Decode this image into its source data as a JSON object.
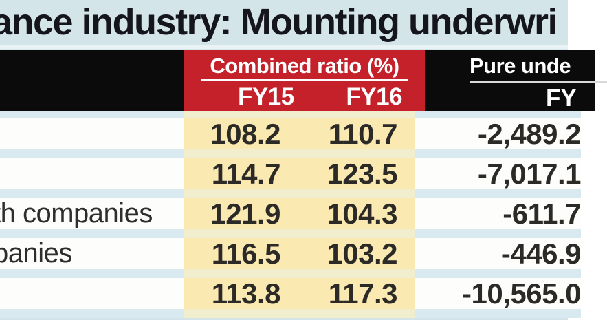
{
  "title": "ance industry: Mounting underwri",
  "header": {
    "group1": {
      "label": "Combined ratio (%)",
      "col1": "FY15",
      "col2": "FY16"
    },
    "group2": {
      "label": "Pure unde",
      "col1": "FY"
    }
  },
  "table": {
    "rows": [
      {
        "label": "",
        "fy15": "108.2",
        "fy16": "110.7",
        "loss": "-2,489.2"
      },
      {
        "label": "",
        "fy15": "114.7",
        "fy16": "123.5",
        "loss": "-7,017.1"
      },
      {
        "label": "th companies",
        "fy15": "121.9",
        "fy16": "104.3",
        "loss": "-611.7"
      },
      {
        "label": "panies",
        "fy15": "116.5",
        "fy16": "103.2",
        "loss": "-446.9"
      },
      {
        "label": "",
        "fy15": "113.8",
        "fy16": "117.3",
        "loss": "-10,565.0"
      }
    ]
  },
  "colors": {
    "background_blue": "#d3e5e9",
    "header_red": "#c4212a",
    "header_black": "#0b0b0b",
    "highlight_yellow": "#fbe9b2",
    "separator_blue": "#d8eaf0",
    "separator_yellow": "#f1eecd",
    "title_text": "#15151d",
    "number_text": "#2c2a27"
  },
  "chart_data": {
    "type": "table",
    "title": "ance industry: Mounting underwri",
    "column_groups": [
      {
        "label": "Combined ratio (%)",
        "columns": [
          "FY15",
          "FY16"
        ]
      },
      {
        "label": "Pure unde",
        "columns": [
          "FY"
        ]
      }
    ],
    "rows": [
      {
        "label": "",
        "combined_ratio_fy15": 108.2,
        "combined_ratio_fy16": 110.7,
        "pure_underwriting": -2489.2
      },
      {
        "label": "",
        "combined_ratio_fy15": 114.7,
        "combined_ratio_fy16": 123.5,
        "pure_underwriting": -7017.1
      },
      {
        "label": "th companies",
        "combined_ratio_fy15": 121.9,
        "combined_ratio_fy16": 104.3,
        "pure_underwriting": -611.7
      },
      {
        "label": "panies",
        "combined_ratio_fy15": 116.5,
        "combined_ratio_fy16": 103.2,
        "pure_underwriting": -446.9
      },
      {
        "label": "",
        "combined_ratio_fy15": 113.8,
        "combined_ratio_fy16": 117.3,
        "pure_underwriting": -10565.0
      }
    ]
  }
}
